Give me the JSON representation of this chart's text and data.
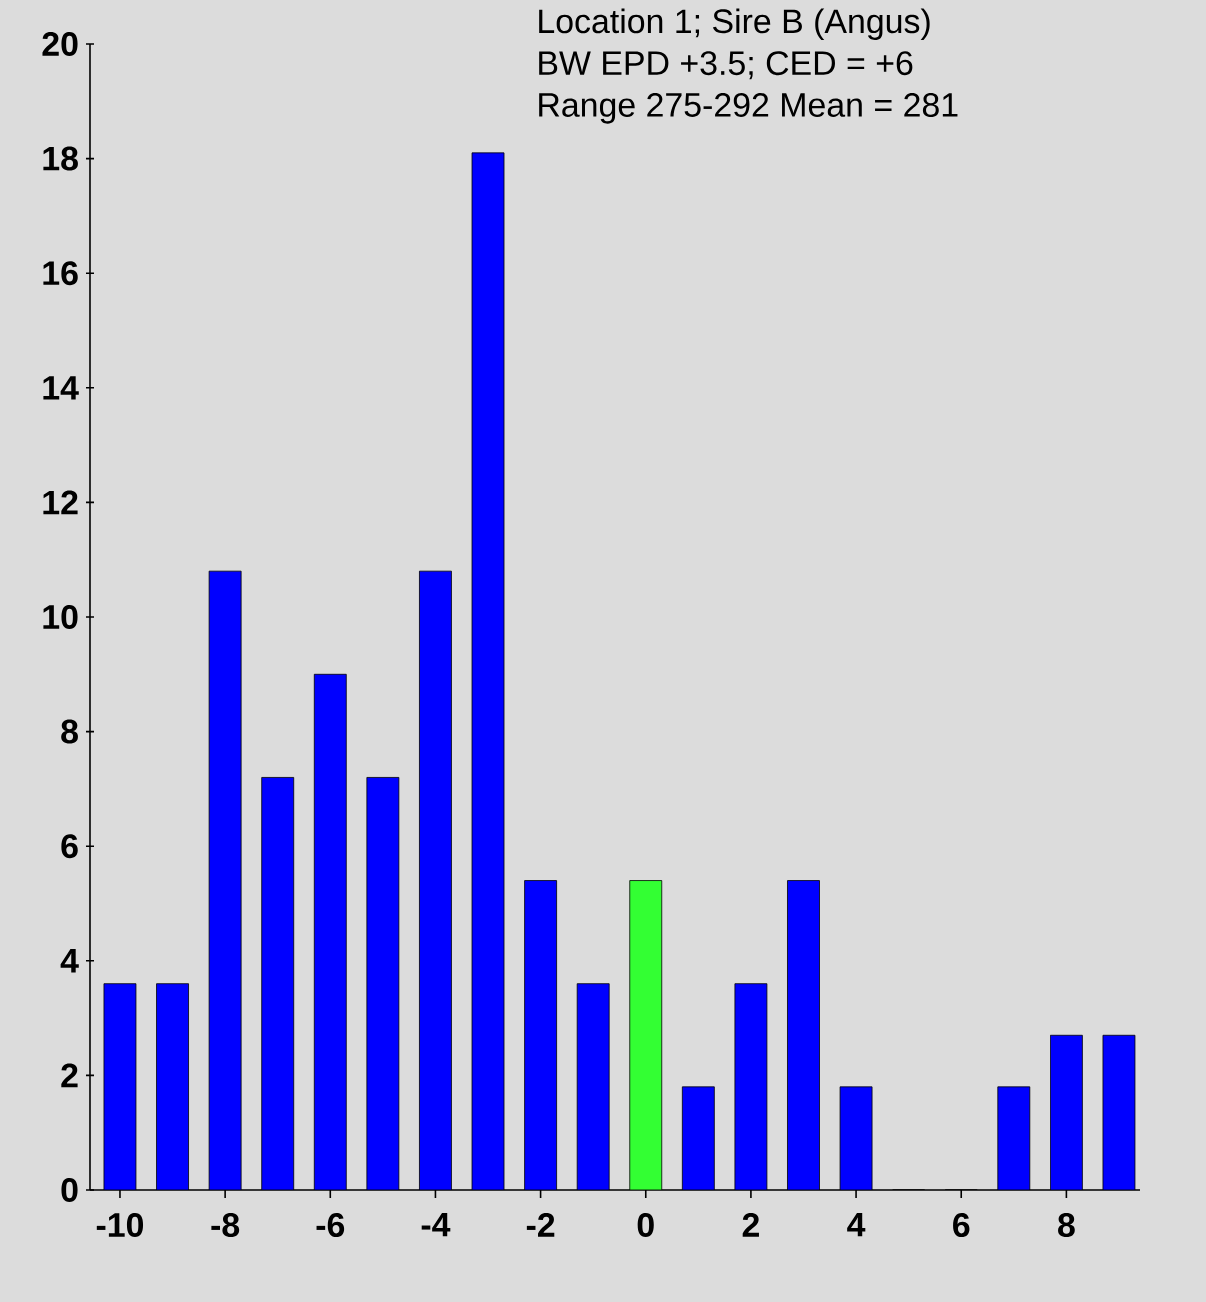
{
  "chart_data": {
    "type": "bar",
    "categories": [
      "-10",
      null,
      "-8",
      null,
      "-6",
      null,
      "-4",
      null,
      "-2",
      null,
      "0",
      null,
      "2",
      null,
      "4",
      null,
      "6",
      null,
      "8",
      null
    ],
    "values": [
      3.6,
      3.6,
      10.8,
      7.2,
      9.0,
      7.2,
      10.8,
      18.1,
      5.4,
      3.6,
      5.4,
      1.8,
      3.6,
      5.4,
      1.8,
      0,
      0,
      1.8,
      2.7,
      2.7
    ],
    "colors": [
      "#0000ff",
      "#0000ff",
      "#0000ff",
      "#0000ff",
      "#0000ff",
      "#0000ff",
      "#0000ff",
      "#0000ff",
      "#0000ff",
      "#0000ff",
      "#33ff33",
      "#0000ff",
      "#0000ff",
      "#0000ff",
      "#0000ff",
      "#0000ff",
      "#0000ff",
      "#0000ff",
      "#0000ff",
      "#0000ff"
    ],
    "ylim": [
      0,
      20
    ],
    "yticks": [
      0,
      2,
      4,
      6,
      8,
      10,
      12,
      14,
      16,
      18,
      20
    ],
    "grid": false,
    "annotations": [
      "Location 1; Sire B (Angus)",
      "BW EPD +3.5;  CED = +6",
      "Range 275-292  Mean = 281"
    ]
  }
}
